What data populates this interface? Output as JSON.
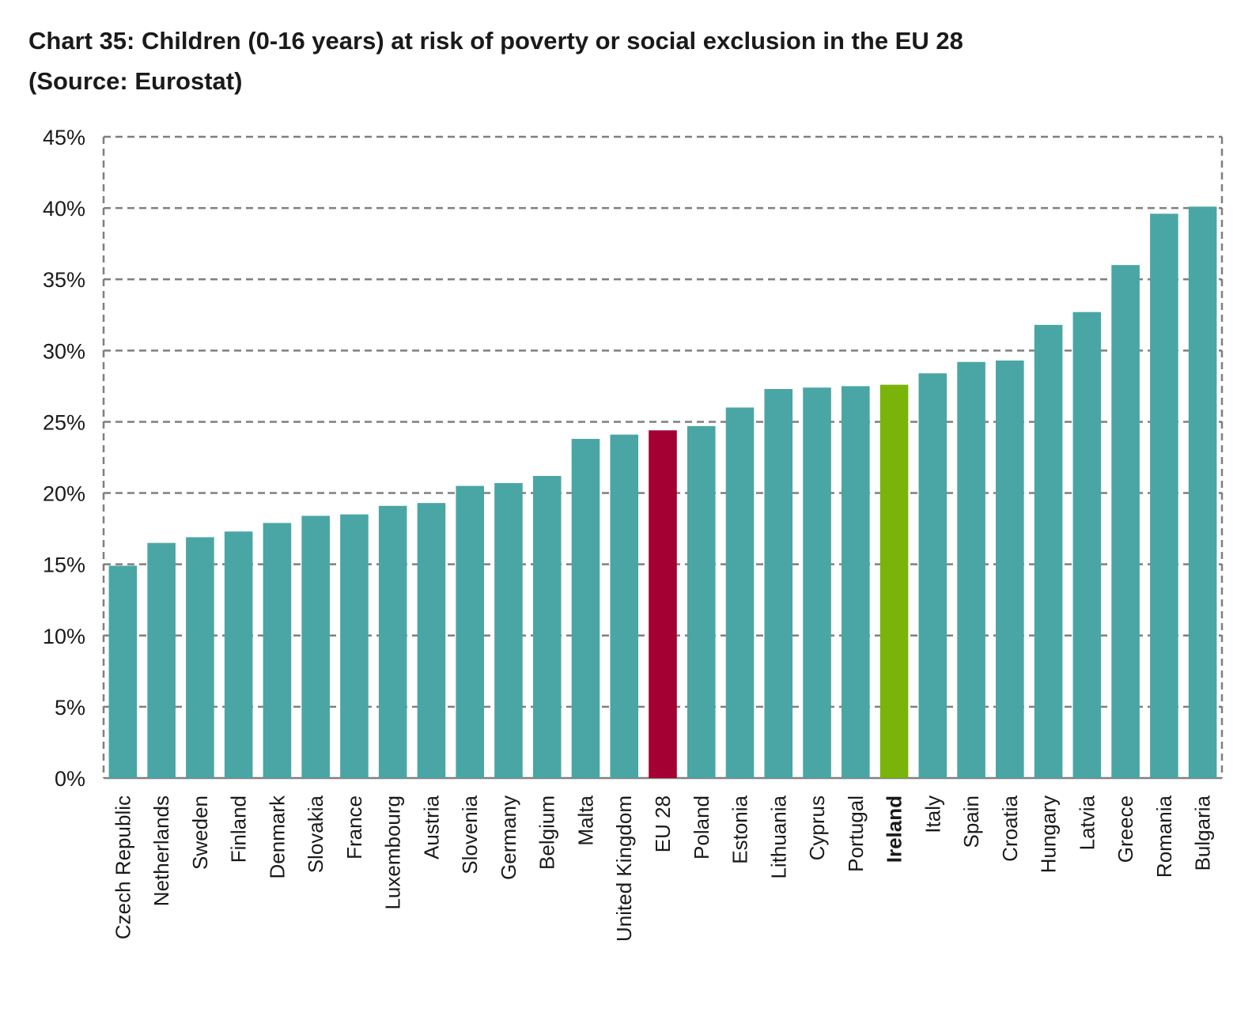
{
  "title": {
    "line1": "Chart 35: Children (0-16 years) at risk of poverty or social exclusion in the EU 28",
    "line2": "(Source: Eurostat)"
  },
  "colors": {
    "default_bar": "#4aa6a4",
    "eu_bar": "#a50034",
    "ireland_bar": "#7ab40a",
    "grid": "#7f7f7f",
    "text": "#1a1a1a"
  },
  "chart_data": {
    "type": "bar",
    "title": "Chart 35: Children (0-16 years) at risk of poverty or social exclusion in the EU 28 (Source: Eurostat)",
    "xlabel": "",
    "ylabel": "",
    "ylim": [
      0,
      45
    ],
    "yticks": [
      0,
      5,
      10,
      15,
      20,
      25,
      30,
      35,
      40,
      45
    ],
    "ytick_labels": [
      "0%",
      "5%",
      "10%",
      "15%",
      "20%",
      "25%",
      "30%",
      "35%",
      "40%",
      "45%"
    ],
    "grid": true,
    "legend": "none",
    "categories": [
      "Czech Republic",
      "Netherlands",
      "Sweden",
      "Finland",
      "Denmark",
      "Slovakia",
      "France",
      "Luxembourg",
      "Austria",
      "Slovenia",
      "Germany",
      "Belgium",
      "Malta",
      "United Kingdom",
      "EU 28",
      "Poland",
      "Estonia",
      "Lithuania",
      "Cyprus",
      "Portugal",
      "Ireland",
      "Italy",
      "Spain",
      "Croatia",
      "Hungary",
      "Latvia",
      "Greece",
      "Romania",
      "Bulgaria"
    ],
    "values": [
      14.9,
      16.5,
      16.9,
      17.3,
      17.9,
      18.4,
      18.5,
      19.1,
      19.3,
      20.5,
      20.7,
      21.2,
      23.8,
      24.1,
      24.4,
      24.7,
      26.0,
      27.3,
      27.4,
      27.5,
      27.6,
      28.4,
      29.2,
      29.3,
      31.8,
      32.7,
      36.0,
      39.6,
      40.1
    ],
    "highlight": {
      "EU 28": "#a50034",
      "Ireland": "#7ab40a"
    },
    "bold_labels": [
      "Ireland"
    ]
  }
}
